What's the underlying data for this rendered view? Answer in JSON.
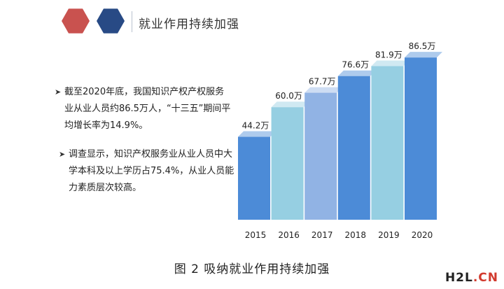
{
  "header": {
    "title": "就业作用持续加强"
  },
  "bullets": [
    {
      "text": "截至2020年底，我国知识产权产权服务业从业人员约86.5万人，“十三五”期间平均增长率为14.9%。"
    },
    {
      "text": "调查显示，知识产权服务业从业人员中大学本科及以上学历占75.4%，从业人员能力素质层次较高。"
    }
  ],
  "caption": "图 2 吸纳就业作用持续加强",
  "watermark": {
    "part_a": "H2L",
    "part_b": ".CN"
  },
  "colors": {
    "hex_red": "#c9524f",
    "hex_blue": "#284a85",
    "bar_palette": [
      "#4c8bd7",
      "#96cfe2",
      "#91b3e4",
      "#4c8bd7",
      "#96cfe2",
      "#4c8bd7"
    ]
  },
  "chart_data": {
    "type": "bar",
    "title": "",
    "xlabel": "",
    "ylabel": "",
    "categories": [
      "2015",
      "2016",
      "2017",
      "2018",
      "2019",
      "2020"
    ],
    "values": [
      44.2,
      60.0,
      67.7,
      76.6,
      81.9,
      86.5
    ],
    "value_labels": [
      "44.2万",
      "60.0万",
      "67.7万",
      "76.6万",
      "81.9万",
      "86.5万"
    ],
    "ylim": [
      0,
      90
    ],
    "grid": false,
    "legend": "none",
    "style": "3d"
  }
}
